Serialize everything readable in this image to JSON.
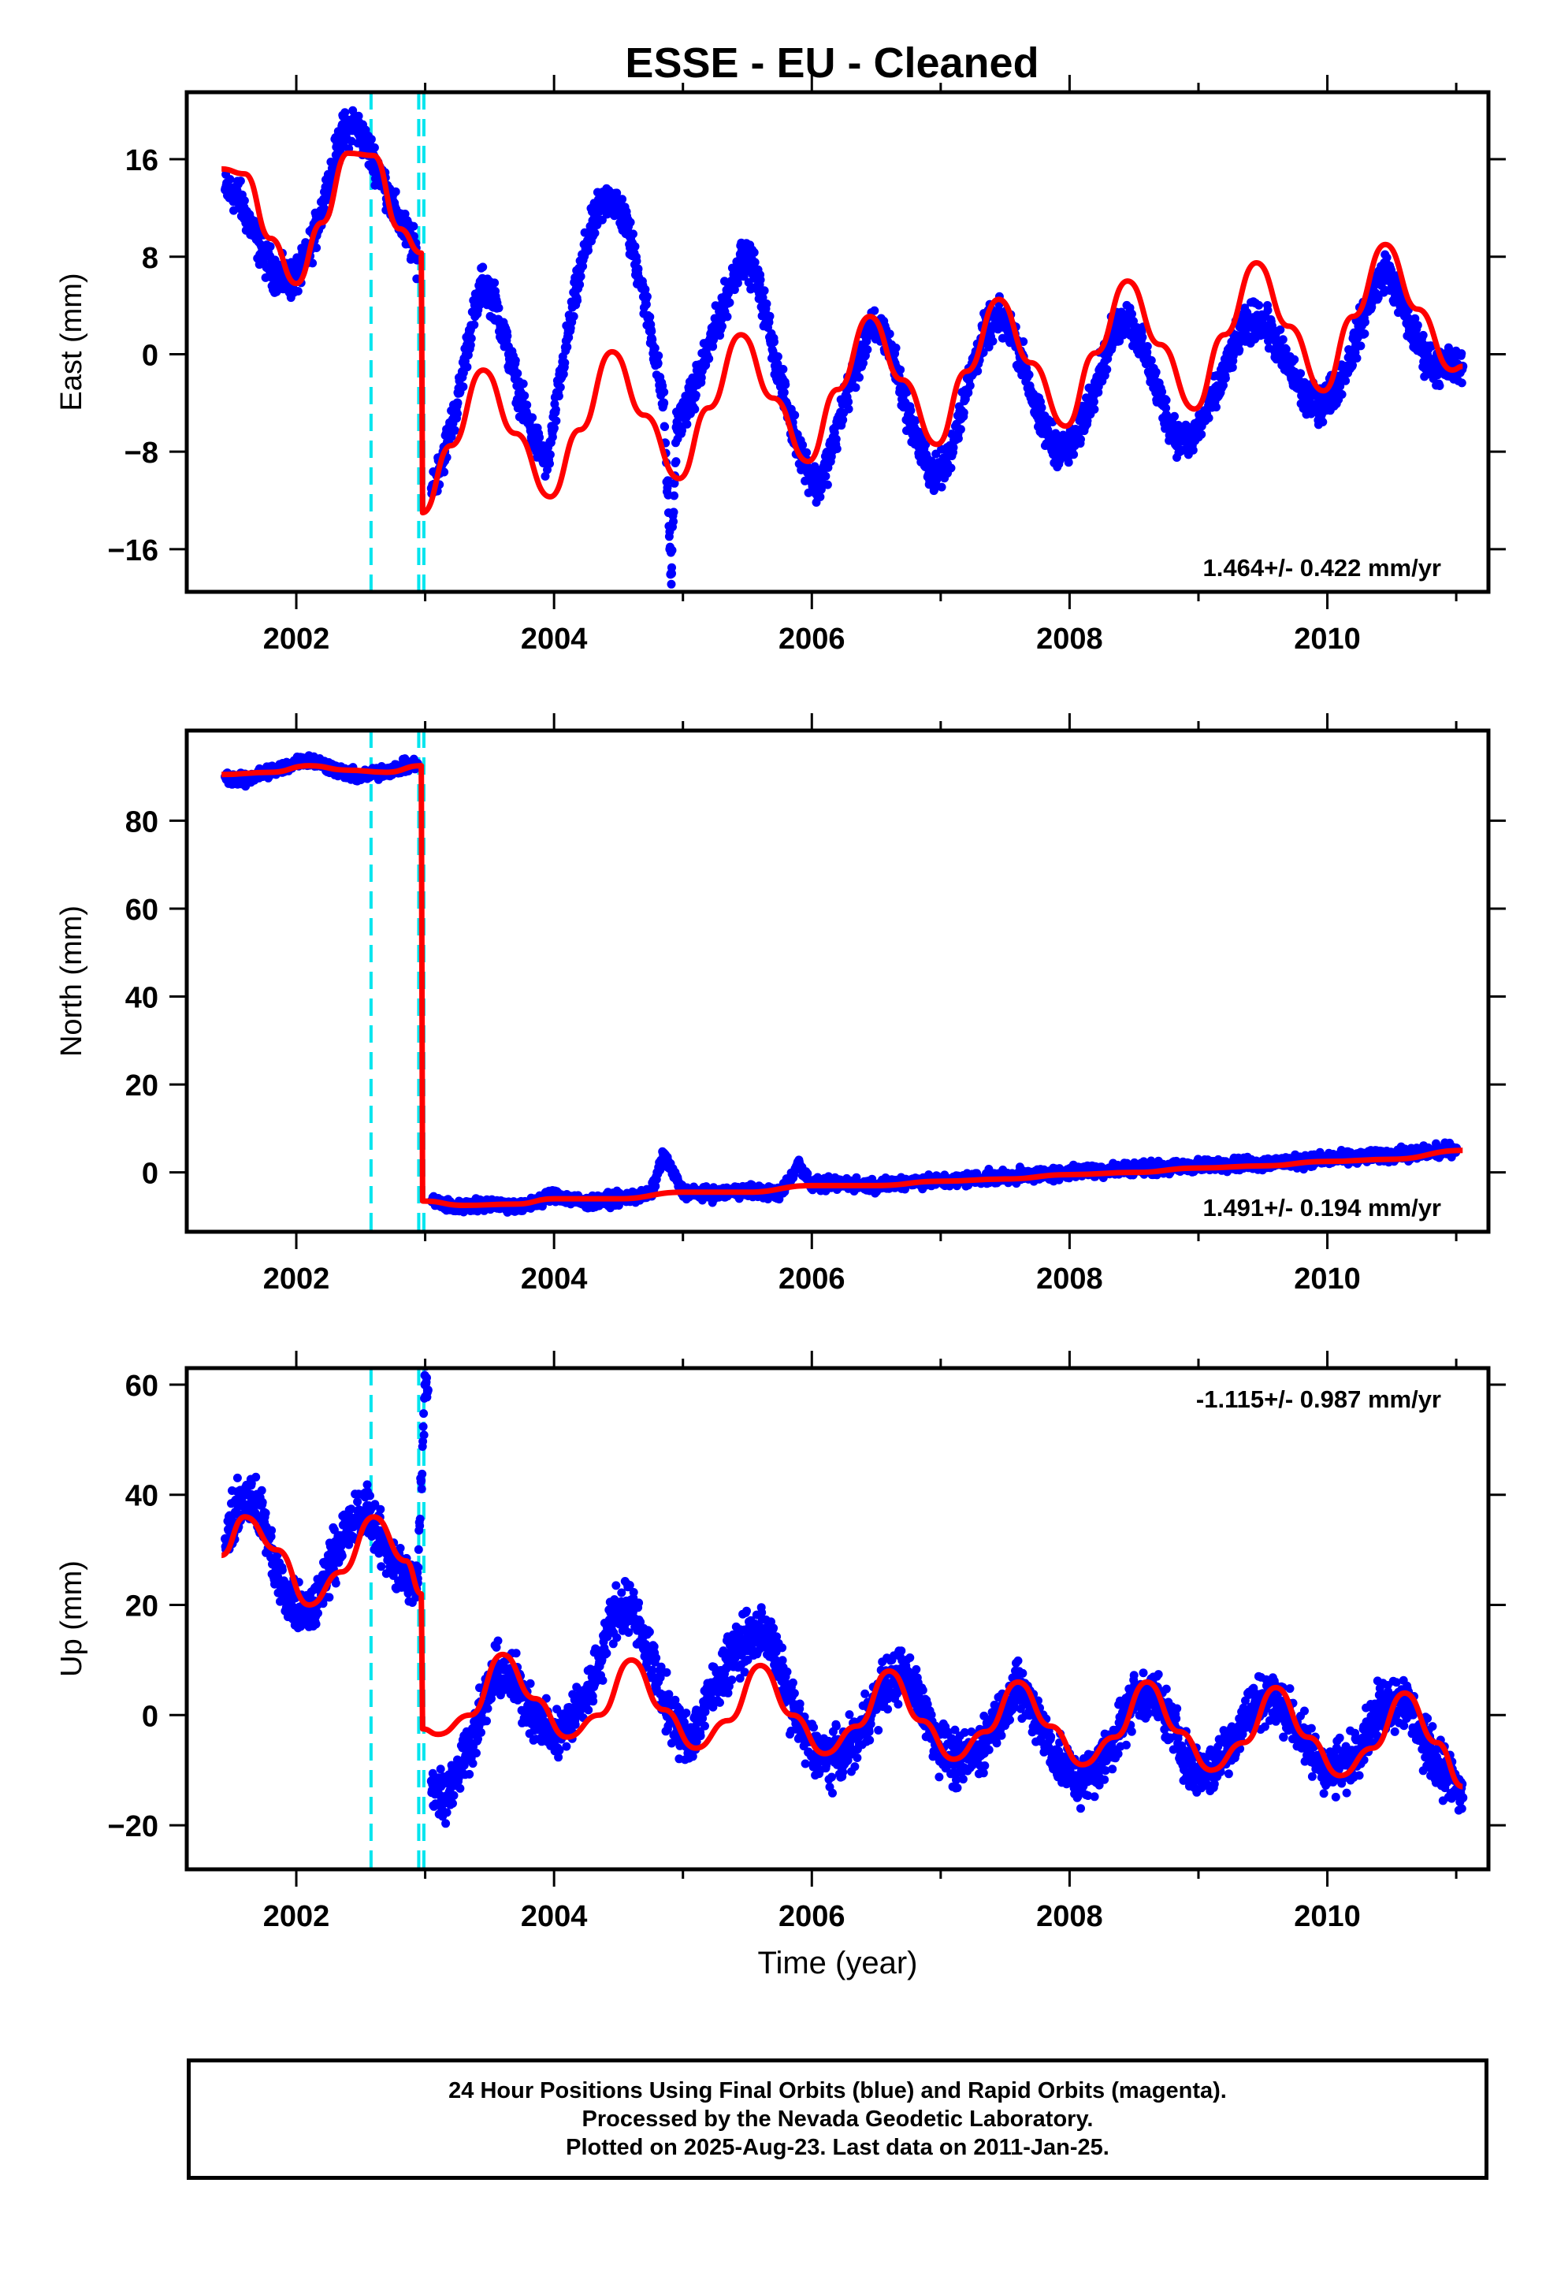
{
  "title": "ESSE  - EU - Cleaned",
  "colors": {
    "points": "#0000ff",
    "model": "#ff0000",
    "offsets": "#00e5ee",
    "frame": "#000000"
  },
  "chart_data": [
    {
      "type": "scatter",
      "panel": "east",
      "ylabel": "East (mm)",
      "xlabel": "",
      "xlim": [
        2001.15,
        2011.25
      ],
      "ylim": [
        -19.5,
        21.5
      ],
      "xticks": [
        2002,
        2004,
        2006,
        2008,
        2010
      ],
      "yticks": [
        -16,
        -8,
        0,
        8,
        16
      ],
      "rate_label": "1.464+/- 0.422 mm/yr",
      "rate_position": "bottom-right",
      "offset_epochs": [
        2002.58,
        2002.95,
        2002.99
      ],
      "series": [
        {
          "role": "daily positions",
          "x": [
            2001.45,
            2001.55,
            2001.65,
            2001.75,
            2001.85,
            2001.95,
            2002.05,
            2002.15,
            2002.25,
            2002.35,
            2002.45,
            2002.55,
            2002.65,
            2002.75,
            2002.85,
            2002.94,
            2003.05,
            2003.15,
            2003.25,
            2003.35,
            2003.45,
            2003.55,
            2003.65,
            2003.75,
            2003.85,
            2003.95,
            2004.05,
            2004.15,
            2004.25,
            2004.35,
            2004.45,
            2004.55,
            2004.65,
            2004.75,
            2004.85,
            2004.95,
            2005.05,
            2005.15,
            2005.25,
            2005.35,
            2005.45,
            2005.55,
            2005.65,
            2005.75,
            2005.85,
            2005.95,
            2006.05,
            2006.15,
            2006.25,
            2006.35,
            2006.45,
            2006.55,
            2006.65,
            2006.75,
            2006.85,
            2006.95,
            2007.05,
            2007.15,
            2007.25,
            2007.35,
            2007.45,
            2007.55,
            2007.65,
            2007.75,
            2007.85,
            2007.95,
            2008.05,
            2008.15,
            2008.25,
            2008.35,
            2008.45,
            2008.55,
            2008.65,
            2008.75,
            2008.85,
            2008.95,
            2009.05,
            2009.15,
            2009.25,
            2009.35,
            2009.45,
            2009.55,
            2009.65,
            2009.75,
            2009.85,
            2009.95,
            2010.05,
            2010.15,
            2010.25,
            2010.35,
            2010.45,
            2010.55,
            2010.65,
            2010.75,
            2010.85,
            2010.95,
            2011.05,
            2004.9,
            2004.91
          ],
          "y": [
            13.5,
            13,
            10.5,
            8,
            6.5,
            6,
            7,
            10,
            14,
            18,
            19,
            17,
            15,
            12,
            10,
            8,
            -11,
            -8,
            -4,
            2,
            6,
            4,
            0,
            -4,
            -7,
            -9,
            -2,
            4,
            9,
            12,
            13,
            11,
            7,
            2,
            -4,
            -6,
            -4,
            -1,
            2,
            5,
            8,
            7,
            3,
            -2,
            -6,
            -9,
            -11,
            -8,
            -4,
            -1,
            2,
            2,
            -1,
            -5,
            -8,
            -10,
            -9,
            -5,
            -1,
            2,
            3,
            2,
            -1,
            -5,
            -7,
            -8,
            -7,
            -4,
            -1,
            2,
            3,
            1,
            -2,
            -5,
            -7,
            -7,
            -5,
            -3,
            0,
            2,
            3,
            2,
            0,
            -2,
            -4,
            -4,
            -3,
            -1,
            2,
            5,
            7,
            5,
            2,
            0,
            -1,
            -1,
            -1,
            -16,
            -18
          ]
        },
        {
          "role": "model fit",
          "x": [
            2001.42,
            2001.6,
            2001.8,
            2002.0,
            2002.2,
            2002.4,
            2002.6,
            2002.8,
            2002.97,
            2002.98,
            2003.2,
            2003.45,
            2003.7,
            2003.97,
            2004.2,
            2004.45,
            2004.7,
            2004.97,
            2005.2,
            2005.45,
            2005.7,
            2005.97,
            2006.2,
            2006.45,
            2006.7,
            2006.97,
            2007.2,
            2007.45,
            2007.7,
            2007.97,
            2008.2,
            2008.45,
            2008.7,
            2008.97,
            2009.2,
            2009.45,
            2009.7,
            2009.97,
            2010.2,
            2010.45,
            2010.7,
            2010.97,
            2011.05
          ],
          "y": [
            15.2,
            14.8,
            9.5,
            5.8,
            10.8,
            16.5,
            16.3,
            10.3,
            8.3,
            -13,
            -7.5,
            -1.3,
            -6.5,
            -11.7,
            -6.2,
            0.2,
            -5,
            -10.2,
            -4.4,
            1.6,
            -3.6,
            -8.8,
            -2.9,
            3.1,
            -2.1,
            -7.4,
            -1.4,
            4.5,
            -0.7,
            -5.9,
            0.1,
            6.0,
            0.8,
            -4.5,
            1.6,
            7.5,
            2.3,
            -3.0,
            3.1,
            9.0,
            3.7,
            -1.3,
            -1.0
          ]
        }
      ]
    },
    {
      "type": "scatter",
      "panel": "north",
      "ylabel": "North (mm)",
      "xlabel": "",
      "xlim": [
        2001.15,
        2011.25
      ],
      "ylim": [
        -13.5,
        100.5
      ],
      "xticks": [
        2002,
        2004,
        2006,
        2008,
        2010
      ],
      "yticks": [
        0,
        20,
        40,
        60,
        80
      ],
      "rate_label": "1.491+/- 0.194 mm/yr",
      "rate_position": "bottom-right",
      "offset_epochs": [
        2002.58,
        2002.95,
        2002.99
      ],
      "series": [
        {
          "role": "daily positions",
          "x": [
            2001.45,
            2001.6,
            2001.75,
            2001.9,
            2002.05,
            2002.2,
            2002.35,
            2002.5,
            2002.65,
            2002.8,
            2002.94,
            2003.05,
            2003.25,
            2003.5,
            2003.75,
            2004.0,
            2004.25,
            2004.5,
            2004.75,
            2004.85,
            2005.0,
            2005.25,
            2005.5,
            2005.75,
            2005.9,
            2006.0,
            2006.25,
            2006.5,
            2006.75,
            2007.0,
            2007.25,
            2007.5,
            2007.75,
            2008.0,
            2008.25,
            2008.5,
            2008.75,
            2009.0,
            2009.25,
            2009.5,
            2009.75,
            2010.0,
            2010.25,
            2010.5,
            2010.75,
            2011.0
          ],
          "y": [
            90,
            89,
            91,
            92,
            94,
            93,
            91,
            90,
            91,
            92,
            93,
            -6.5,
            -8,
            -7,
            -8,
            -5,
            -7,
            -6,
            -5,
            4,
            -4.5,
            -5,
            -4,
            -5,
            2,
            -3,
            -2.5,
            -3,
            -2,
            -2,
            -1.5,
            -1,
            -0.5,
            0,
            0.5,
            1,
            1,
            1.5,
            2,
            2,
            2.5,
            3,
            3.5,
            4,
            4.5,
            5.5
          ]
        },
        {
          "role": "model fit",
          "x": [
            2001.42,
            2001.8,
            2002.1,
            2002.4,
            2002.7,
            2002.97,
            2002.98,
            2003.3,
            2003.7,
            2004.0,
            2004.5,
            2005.0,
            2005.5,
            2006.0,
            2006.5,
            2007.0,
            2007.5,
            2008.0,
            2008.5,
            2009.0,
            2009.5,
            2010.0,
            2010.5,
            2011.05
          ],
          "y": [
            90.5,
            91,
            92.5,
            91.5,
            91,
            92.5,
            -6.5,
            -7.5,
            -7.2,
            -6,
            -6,
            -4.5,
            -4.5,
            -3,
            -3,
            -2,
            -1.5,
            -0.5,
            0,
            1,
            1.5,
            2.5,
            3,
            5
          ]
        }
      ]
    },
    {
      "type": "scatter",
      "panel": "up",
      "ylabel": "Up (mm)",
      "xlabel": "Time (year)",
      "xlim": [
        2001.15,
        2011.25
      ],
      "ylim": [
        -28,
        63
      ],
      "xticks": [
        2002,
        2004,
        2006,
        2008,
        2010
      ],
      "yticks": [
        -20,
        0,
        20,
        40,
        60
      ],
      "rate_label": "-1.115+/- 0.987 mm/yr",
      "rate_position": "top-right",
      "offset_epochs": [
        2002.58,
        2002.95,
        2002.99
      ],
      "series": [
        {
          "role": "daily positions",
          "x": [
            2001.45,
            2001.55,
            2001.65,
            2001.75,
            2001.85,
            2001.95,
            2002.05,
            2002.15,
            2002.25,
            2002.35,
            2002.45,
            2002.55,
            2002.65,
            2002.75,
            2002.85,
            2002.94,
            2003.05,
            2003.15,
            2003.25,
            2003.4,
            2003.55,
            2003.7,
            2003.85,
            2004.0,
            2004.15,
            2004.3,
            2004.45,
            2004.6,
            2004.75,
            2004.9,
            2005.05,
            2005.2,
            2005.35,
            2005.5,
            2005.65,
            2005.8,
            2005.95,
            2006.1,
            2006.25,
            2006.4,
            2006.55,
            2006.7,
            2006.85,
            2007.0,
            2007.15,
            2007.3,
            2007.45,
            2007.6,
            2007.75,
            2007.9,
            2008.05,
            2008.2,
            2008.35,
            2008.5,
            2008.65,
            2008.8,
            2008.95,
            2009.1,
            2009.25,
            2009.4,
            2009.55,
            2009.7,
            2009.85,
            2010.0,
            2010.15,
            2010.3,
            2010.45,
            2010.6,
            2010.75,
            2010.9,
            2011.05,
            2003.0,
            2003.02
          ],
          "y": [
            32,
            38,
            40,
            35,
            25,
            20,
            18,
            20,
            27,
            32,
            35,
            38,
            32,
            28,
            25,
            24,
            -12,
            -15,
            -10,
            -2,
            8,
            6,
            0,
            -4,
            0,
            6,
            18,
            20,
            10,
            0,
            -5,
            3,
            10,
            14,
            15,
            5,
            -5,
            -8,
            -7,
            -2,
            5,
            8,
            2,
            -6,
            -9,
            -6,
            0,
            5,
            0,
            -8,
            -12,
            -10,
            -4,
            3,
            4,
            -2,
            -10,
            -10,
            -5,
            1,
            4,
            0,
            -6,
            -10,
            -9,
            -3,
            2,
            3,
            -5,
            -10,
            -15,
            60,
            59
          ]
        },
        {
          "role": "model fit",
          "x": [
            2001.42,
            2001.6,
            2001.85,
            2002.1,
            2002.35,
            2002.6,
            2002.85,
            2002.97,
            2002.98,
            2003.1,
            2003.35,
            2003.6,
            2003.85,
            2004.1,
            2004.35,
            2004.6,
            2004.85,
            2005.1,
            2005.35,
            2005.6,
            2005.85,
            2006.1,
            2006.35,
            2006.6,
            2006.85,
            2007.1,
            2007.35,
            2007.6,
            2007.85,
            2008.1,
            2008.35,
            2008.6,
            2008.85,
            2009.1,
            2009.35,
            2009.6,
            2009.85,
            2010.1,
            2010.35,
            2010.6,
            2010.85,
            2011.05
          ],
          "y": [
            29,
            36,
            30,
            20,
            26,
            36,
            28,
            22,
            -2.5,
            -3.5,
            0,
            11,
            3,
            -4,
            0,
            10,
            1,
            -6,
            -1,
            9,
            0,
            -7,
            -2,
            8,
            -1,
            -8,
            -3,
            6,
            -2,
            -9,
            -4,
            6,
            -3,
            -10,
            -5,
            5,
            -4,
            -11,
            -6,
            4,
            -5,
            -13
          ]
        }
      ]
    }
  ],
  "footer": {
    "line1": "24 Hour Positions Using Final Orbits (blue) and Rapid Orbits (magenta).",
    "line2": "Processed by the Nevada Geodetic Laboratory.",
    "line3": "Plotted on 2025-Aug-23. Last data on 2011-Jan-25."
  }
}
